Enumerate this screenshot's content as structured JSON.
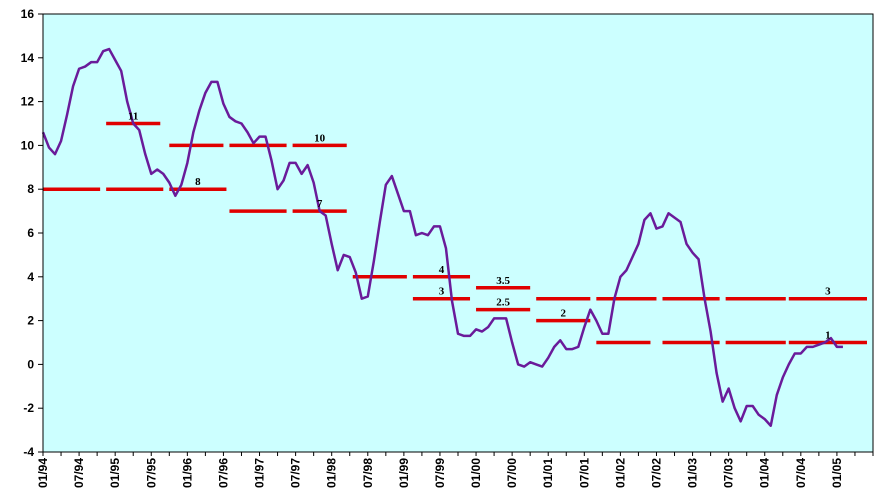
{
  "chart_data": {
    "type": "line",
    "title": "",
    "xlabel": "",
    "ylabel": "",
    "ylim": [
      -4,
      16
    ],
    "yticks": [
      "16",
      "14",
      "12",
      "10",
      "8",
      "6",
      "4",
      "2",
      "0",
      "-2",
      "-4"
    ],
    "x_tick_labels": [
      "01/94",
      "07/94",
      "01/95",
      "07/95",
      "01/96",
      "07/96",
      "01/97",
      "07/97",
      "01/98",
      "07/98",
      "01/99",
      "07/99",
      "01/00",
      "07/00",
      "01/01",
      "07/01",
      "01/02",
      "07/02",
      "01/03",
      "07/03",
      "01/04",
      "07/04",
      "01/05"
    ],
    "plot_background": "#ccffff",
    "series": [
      {
        "color": "#6a1b9a",
        "start_month": "01/94",
        "step": "1 month",
        "values": [
          10.6,
          9.9,
          9.6,
          10.2,
          11.4,
          12.7,
          13.5,
          13.6,
          13.8,
          13.8,
          14.3,
          14.4,
          13.9,
          13.4,
          12.0,
          11.0,
          10.7,
          9.6,
          8.7,
          8.9,
          8.7,
          8.3,
          7.7,
          8.2,
          9.2,
          10.6,
          11.6,
          12.4,
          12.9,
          12.9,
          11.9,
          11.3,
          11.1,
          11.0,
          10.6,
          10.1,
          10.4,
          10.4,
          9.3,
          8.0,
          8.4,
          9.2,
          9.2,
          8.7,
          9.1,
          8.3,
          7.0,
          6.8,
          5.5,
          4.3,
          5.0,
          4.9,
          4.2,
          3.0,
          3.1,
          4.7,
          6.5,
          8.2,
          8.6,
          7.8,
          7.0,
          7.0,
          5.9,
          6.0,
          5.9,
          6.3,
          6.3,
          5.3,
          2.9,
          1.4,
          1.3,
          1.3,
          1.6,
          1.5,
          1.7,
          2.1,
          2.1,
          2.1,
          1.0,
          0.0,
          -0.1,
          0.1,
          0.0,
          -0.1,
          0.3,
          0.8,
          1.1,
          0.7,
          0.7,
          0.8,
          1.7,
          2.5,
          2.0,
          1.4,
          1.4,
          3.0,
          4.0,
          4.3,
          4.9,
          5.5,
          6.6,
          6.9,
          6.2,
          6.3,
          6.9,
          6.7,
          6.5,
          5.5,
          5.1,
          4.8,
          3.0,
          1.5,
          -0.4,
          -1.7,
          -1.1,
          -2.0,
          -2.6,
          -1.9,
          -1.9,
          -2.3,
          -2.5,
          -2.8,
          -1.4,
          -0.6,
          0.0,
          0.5,
          0.5,
          0.8,
          0.8,
          0.9,
          1.0,
          1.2,
          0.8,
          0.8
        ]
      }
    ],
    "bands": [
      {
        "value": 8,
        "from": 0,
        "to": 9.5,
        "label": ""
      },
      {
        "value": 8,
        "from": 10.5,
        "to": 20,
        "label": ""
      },
      {
        "value": 8,
        "from": 21,
        "to": 30.5,
        "label": "8"
      },
      {
        "value": 11,
        "from": 10.5,
        "to": 19.5,
        "label": "11"
      },
      {
        "value": 10,
        "from": 21,
        "to": 30,
        "label": ""
      },
      {
        "value": 10,
        "from": 31,
        "to": 40.5,
        "label": ""
      },
      {
        "value": 10,
        "from": 41.5,
        "to": 50.5,
        "label": "10"
      },
      {
        "value": 7,
        "from": 31,
        "to": 40.5,
        "label": ""
      },
      {
        "value": 7,
        "from": 41.5,
        "to": 50.5,
        "label": "7"
      },
      {
        "value": 4,
        "from": 51.5,
        "to": 60.5,
        "label": ""
      },
      {
        "value": 4,
        "from": 61.5,
        "to": 71,
        "label": "4"
      },
      {
        "value": 3,
        "from": 61.5,
        "to": 71,
        "label": "3"
      },
      {
        "value": 3.5,
        "from": 72,
        "to": 81,
        "label": "3.5"
      },
      {
        "value": 2.5,
        "from": 72,
        "to": 81,
        "label": "2.5"
      },
      {
        "value": 3,
        "from": 82,
        "to": 91,
        "label": ""
      },
      {
        "value": 2,
        "from": 82,
        "to": 91,
        "label": "2"
      },
      {
        "value": 3,
        "from": 92,
        "to": 102,
        "label": ""
      },
      {
        "value": 1,
        "from": 92,
        "to": 101,
        "label": ""
      },
      {
        "value": 3,
        "from": 103,
        "to": 112.5,
        "label": ""
      },
      {
        "value": 3,
        "from": 113.5,
        "to": 123.5,
        "label": ""
      },
      {
        "value": 3,
        "from": 124,
        "to": 137,
        "label": "3"
      },
      {
        "value": 1,
        "from": 103,
        "to": 112.5,
        "label": ""
      },
      {
        "value": 1,
        "from": 113.5,
        "to": 123.5,
        "label": ""
      },
      {
        "value": 1,
        "from": 124,
        "to": 137,
        "label": "1"
      }
    ],
    "band_color": "#e00000"
  }
}
